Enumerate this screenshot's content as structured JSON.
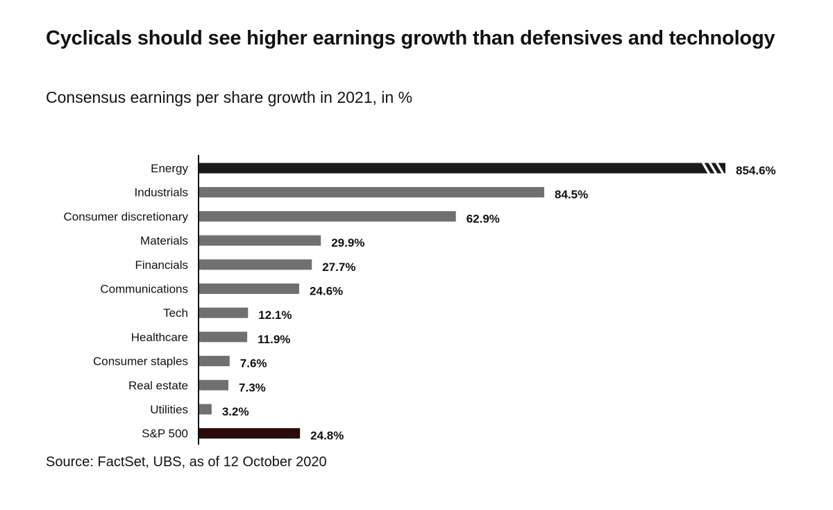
{
  "title": "Cyclicals should see higher earnings growth than defensives and technology",
  "subtitle": "Consensus earnings per share growth in 2021, in %",
  "source": "Source: FactSet, UBS, as of 12 October 2020",
  "chart_data": {
    "type": "bar",
    "orientation": "horizontal",
    "title": "Cyclicals should see higher earnings growth than defensives and technology",
    "subtitle": "Consensus earnings per share growth in 2021, in %",
    "categories": [
      "Energy",
      "Industrials",
      "Consumer discretionary",
      "Materials",
      "Financials",
      "Communications",
      "Tech",
      "Healthcare",
      "Consumer staples",
      "Real estate",
      "Utilities",
      "S&P 500"
    ],
    "values": [
      854.6,
      84.5,
      62.9,
      29.9,
      27.7,
      24.6,
      12.1,
      11.9,
      7.6,
      7.3,
      3.2,
      24.8
    ],
    "value_labels": [
      "854.6%",
      "84.5%",
      "62.9%",
      "29.9%",
      "27.7%",
      "24.6%",
      "12.1%",
      "11.9%",
      "7.6%",
      "7.3%",
      "3.2%",
      "24.8%"
    ],
    "xlim": [
      0,
      84.5
    ],
    "broken_axis_bar": "Energy",
    "grid": false,
    "legend": "none",
    "colors": {
      "default": "#707070",
      "Energy": "#1a1a1a",
      "S&P 500": "#2a0a0a"
    }
  }
}
